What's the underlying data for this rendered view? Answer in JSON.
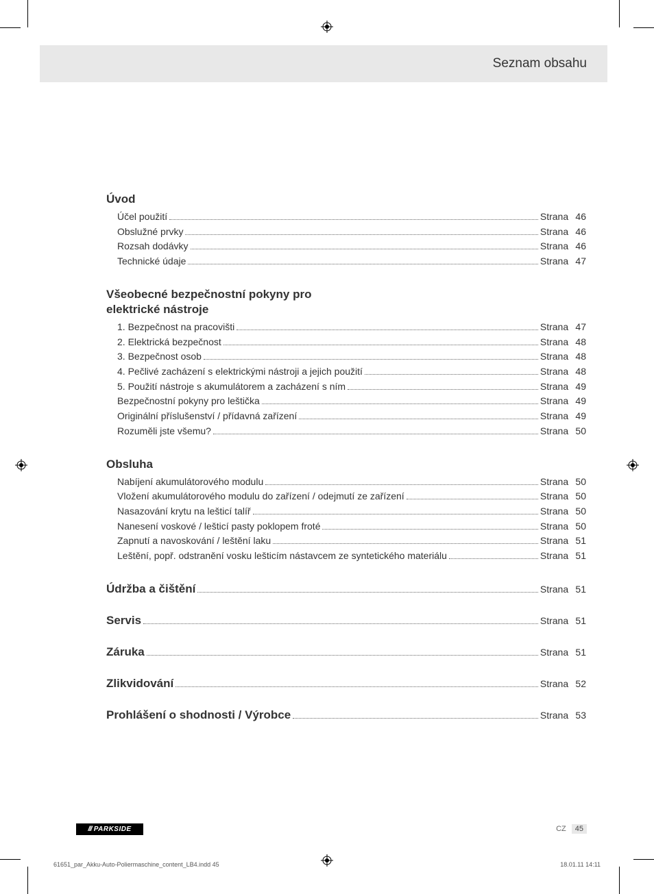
{
  "header": {
    "title": "Seznam obsahu"
  },
  "sections": [
    {
      "title": "Úvod",
      "items": [
        {
          "label": "Účel použití",
          "page_word": "Strana",
          "page": "46"
        },
        {
          "label": "Obslužné prvky",
          "page_word": "Strana",
          "page": "46"
        },
        {
          "label": "Rozsah dodávky",
          "page_word": "Strana",
          "page": "46"
        },
        {
          "label": "Technické údaje",
          "page_word": "Strana",
          "page": "47"
        }
      ]
    },
    {
      "title": "Všeobecné bezpečnostní pokyny pro elektrické nástroje",
      "items": [
        {
          "label": "1. Bezpečnost na pracovišti",
          "page_word": "Strana",
          "page": "47"
        },
        {
          "label": "2. Elektrická bezpečnost",
          "page_word": "Strana",
          "page": "48"
        },
        {
          "label": "3. Bezpečnost osob",
          "page_word": "Strana",
          "page": "48"
        },
        {
          "label": "4. Pečlivé zacházení s elektrickými nástroji a jejich použití",
          "page_word": "Strana",
          "page": "48"
        },
        {
          "label": "5. Použití nástroje s akumulátorem a zacházení s ním",
          "page_word": "Strana",
          "page": "49"
        },
        {
          "label": "Bezpečnostní pokyny pro leštička",
          "page_word": "Strana",
          "page": "49"
        },
        {
          "label": "Originální příslušenství / přídavná zařízení",
          "page_word": "Strana",
          "page": "49"
        },
        {
          "label": "Rozuměli jste všemu?",
          "page_word": "Strana",
          "page": "50"
        }
      ]
    },
    {
      "title": "Obsluha",
      "items": [
        {
          "label": "Nabíjení akumulátorového modulu",
          "page_word": "Strana",
          "page": "50"
        },
        {
          "label": "Vložení akumulátorového modulu do zařízení / odejmutí ze zařízení",
          "page_word": "Strana",
          "page": "50"
        },
        {
          "label": "Nasazování krytu na lešticí talíř",
          "page_word": "Strana",
          "page": "50"
        },
        {
          "label": "Nanesení voskové / lešticí pasty poklopem froté",
          "page_word": "Strana",
          "page": "50"
        },
        {
          "label": "Zapnutí a navoskování / leštění laku",
          "page_word": "Strana",
          "page": "51"
        },
        {
          "label": "Leštění, popř. odstranění vosku lešticím nástavcem ze syntetického materiálu",
          "page_word": "Strana",
          "page": "51"
        }
      ]
    }
  ],
  "bold_sections": [
    {
      "title": "Údržba a čištění",
      "page_word": "Strana",
      "page": "51"
    },
    {
      "title": "Servis",
      "page_word": "Strana",
      "page": "51"
    },
    {
      "title": "Záruka",
      "page_word": "Strana",
      "page": "51"
    },
    {
      "title": "Zlikvidování",
      "page_word": "Strana",
      "page": "52"
    },
    {
      "title": "Prohlášení o shodnosti / Výrobce",
      "page_word": "Strana",
      "page": "53"
    }
  ],
  "logo": {
    "slashes": "///",
    "brand": "PARKSIDE"
  },
  "footer": {
    "lang": "CZ",
    "page_num": "45",
    "doc_line": "61651_par_Akku-Auto-Poliermaschine_content_LB4.indd   45",
    "timestamp": "18.01.11   14:11"
  },
  "colors": {
    "band_bg": "#e8e8e8",
    "text": "#333333",
    "muted": "#666666",
    "logo_bg": "#000000",
    "logo_fg": "#ffffff"
  }
}
